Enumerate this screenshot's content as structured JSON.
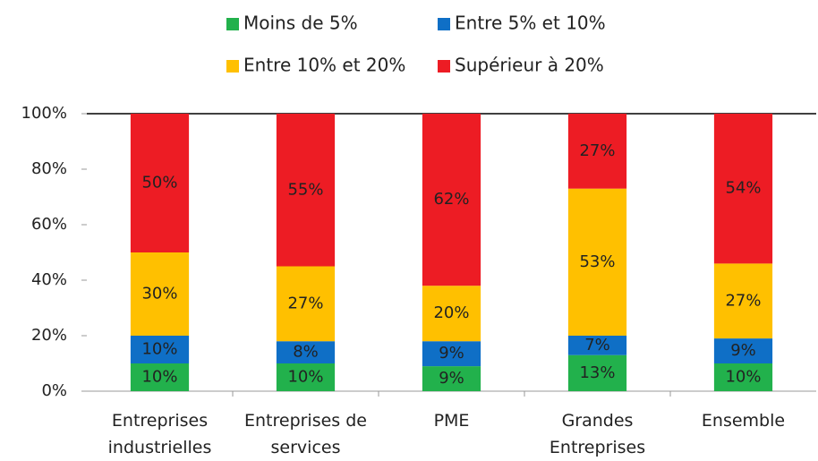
{
  "chart_data": {
    "type": "stacked_bar",
    "categories": [
      "Entreprises industrielles",
      "Entreprises de services",
      "PME",
      "Grandes Entreprises",
      "Ensemble"
    ],
    "series": [
      {
        "name": "Moins de 5%",
        "color": "#22b14c",
        "values": [
          10,
          10,
          9,
          13,
          10
        ],
        "value_labels": [
          "10%",
          "10%",
          "9%",
          "13%",
          "10%"
        ]
      },
      {
        "name": "Entre 5% et 10%",
        "color": "#0f6fc6",
        "values": [
          10,
          8,
          9,
          7,
          9
        ],
        "value_labels": [
          "10%",
          "8%",
          "9%",
          "7%",
          "9%"
        ]
      },
      {
        "name": "Entre 10% et 20%",
        "color": "#ffc000",
        "values": [
          30,
          27,
          20,
          53,
          27
        ],
        "value_labels": [
          "30%",
          "27%",
          "20%",
          "53%",
          "27%"
        ]
      },
      {
        "name": "Supérieur à 20%",
        "color": "#ed1c24",
        "values": [
          50,
          55,
          62,
          27,
          54
        ],
        "value_labels": [
          "50%",
          "55%",
          "62%",
          "27%",
          "54%"
        ]
      }
    ],
    "ylim": [
      0,
      100
    ],
    "yticks": [
      {
        "value": 0,
        "label": "0%"
      },
      {
        "value": 20,
        "label": "20%"
      },
      {
        "value": 40,
        "label": "40%"
      },
      {
        "value": 60,
        "label": "60%"
      },
      {
        "value": 80,
        "label": "80%"
      },
      {
        "value": 100,
        "label": "100%"
      }
    ],
    "legend": "top"
  }
}
